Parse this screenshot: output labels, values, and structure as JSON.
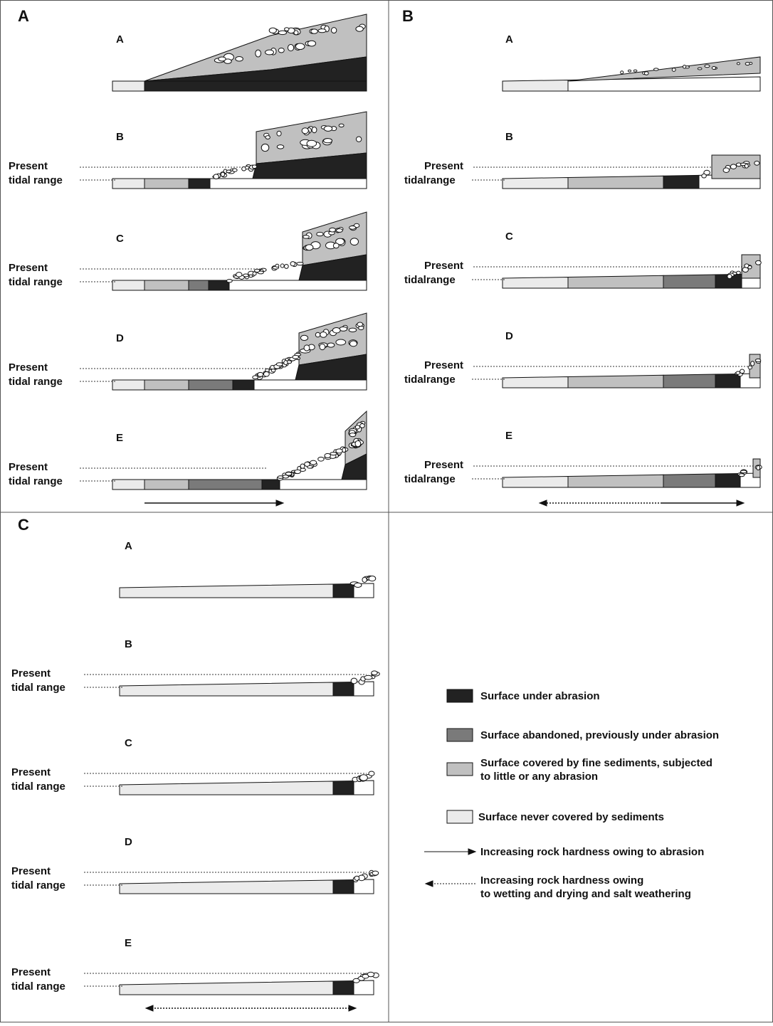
{
  "panels": [
    {
      "label": "A",
      "stages": [
        {
          "label": "A"
        },
        {
          "label": "B",
          "tidal": [
            "Present",
            "tidal range"
          ]
        },
        {
          "label": "C",
          "tidal": [
            "Present",
            "tidal range"
          ]
        },
        {
          "label": "D",
          "tidal": [
            "Present",
            "tidal range"
          ]
        },
        {
          "label": "E",
          "tidal": [
            "Present",
            "tidal range"
          ]
        }
      ]
    },
    {
      "label": "B",
      "stages": [
        {
          "label": "A"
        },
        {
          "label": "B",
          "tidal": [
            "Present",
            "tidalrange"
          ]
        },
        {
          "label": "C",
          "tidal": [
            "Present",
            "tidalrange"
          ]
        },
        {
          "label": "D",
          "tidal": [
            "Present",
            "tidalrange"
          ]
        },
        {
          "label": "E",
          "tidal": [
            "Present",
            "tidalrange"
          ]
        }
      ]
    },
    {
      "label": "C",
      "stages": [
        {
          "label": "A"
        },
        {
          "label": "B",
          "tidal": [
            "Present",
            "tidal range"
          ]
        },
        {
          "label": "C",
          "tidal": [
            "Present",
            "tidal range"
          ]
        },
        {
          "label": "D",
          "tidal": [
            "Present",
            "tidal range"
          ]
        },
        {
          "label": "E",
          "tidal": [
            "Present",
            "tidal range"
          ]
        }
      ]
    }
  ],
  "legend": [
    {
      "lines": [
        "Surface under abrasion"
      ]
    },
    {
      "lines": [
        "Surface abandoned, previously under abrasion"
      ]
    },
    {
      "lines": [
        "Surface covered by fine sediments, subjected",
        "to little or any abrasion"
      ]
    },
    {
      "lines": [
        "Surface never covered by sediments"
      ]
    },
    {
      "lines": [
        "Increasing rock hardness owing to abrasion"
      ]
    },
    {
      "lines": [
        "Increasing rock hardness owing",
        "to wetting and drying and salt weathering"
      ]
    }
  ]
}
